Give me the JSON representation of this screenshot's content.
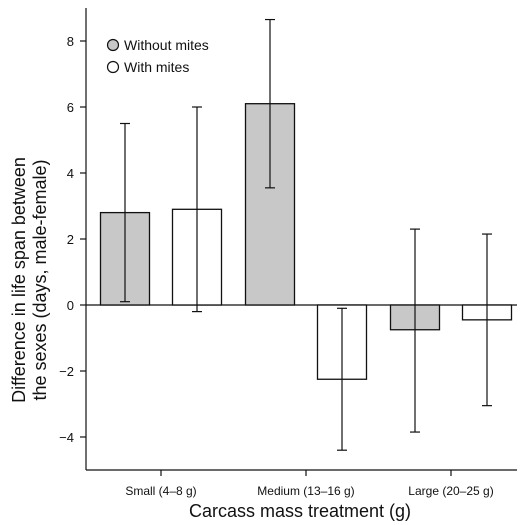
{
  "chart_data": {
    "type": "bar",
    "xlabel": "Carcass mass treatment (g)",
    "ylabel_line1": "Difference in life span between",
    "ylabel_line2": "the sexes (days, male-female)",
    "categories": [
      "Small (4–8 g)",
      "Medium (13–16 g)",
      "Large (20–25 g)"
    ],
    "ylim": [
      -5,
      9
    ],
    "yticks": [
      -4,
      -2,
      0,
      2,
      4,
      6,
      8
    ],
    "ytick_labels": [
      "−4",
      "−2",
      "0",
      "2",
      "4",
      "6",
      "8"
    ],
    "legend_position": "top-left",
    "grid": false,
    "series": [
      {
        "name": "Without mites",
        "color": "#c8c8c8",
        "values": [
          2.8,
          6.1,
          -0.75
        ],
        "err_low": [
          0.1,
          3.55,
          -3.85
        ],
        "err_high": [
          5.5,
          8.65,
          2.3
        ]
      },
      {
        "name": "With mites",
        "color": "#ffffff",
        "values": [
          2.9,
          -2.25,
          -0.45
        ],
        "err_low": [
          -0.2,
          -4.4,
          -3.05
        ],
        "err_high": [
          6.0,
          -0.1,
          2.15
        ]
      }
    ]
  }
}
